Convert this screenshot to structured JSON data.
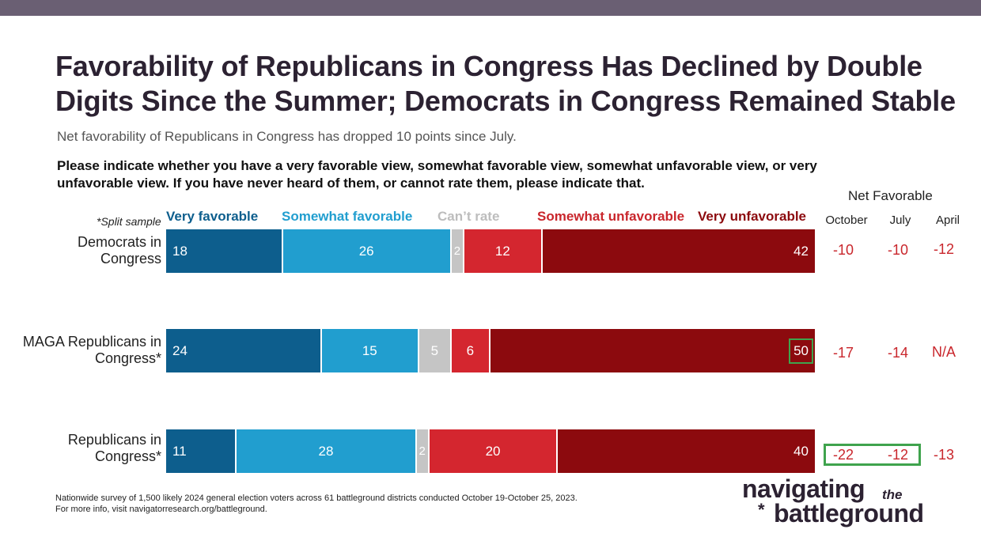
{
  "header": {
    "title": "Favorability of Republicans in Congress Has Declined by Double Digits Since the Summer; Democrats in Congress Remained Stable",
    "subtitle": "Net favorability of Republicans in Congress has dropped 10 points since July.",
    "question": "Please indicate whether you have a very favorable view, somewhat favorable view, somewhat unfavorable view, or very unfavorable view. If you have never heard of them, or cannot rate them, please indicate that."
  },
  "split_note": "*Split sample",
  "net_favorable": {
    "title": "Net Favorable",
    "columns": [
      "October",
      "July",
      "April"
    ]
  },
  "colors": {
    "very_favorable": "#0d5e8d",
    "somewhat_favorable": "#219ecf",
    "cant_rate": "#c5c5c5",
    "somewhat_unfavorable": "#d4262f",
    "very_unfavorable": "#8c0a0e",
    "net_text": "#c9262c",
    "highlight": "#3fa34d"
  },
  "chart_data": {
    "type": "bar",
    "orientation": "horizontal-stacked",
    "legend": [
      "Very favorable",
      "Somewhat favorable",
      "Can’t rate",
      "Somewhat unfavorable",
      "Very unfavorable"
    ],
    "categories": [
      "Democrats in Congress",
      "MAGA Republicans in Congress*",
      "Republicans in Congress*"
    ],
    "series": [
      {
        "name": "Very favorable",
        "values": [
          18,
          24,
          11
        ]
      },
      {
        "name": "Somewhat favorable",
        "values": [
          26,
          15,
          28
        ]
      },
      {
        "name": "Can’t rate",
        "values": [
          2,
          5,
          2
        ]
      },
      {
        "name": "Somewhat unfavorable",
        "values": [
          12,
          6,
          20
        ]
      },
      {
        "name": "Very unfavorable",
        "values": [
          42,
          50,
          40
        ]
      }
    ],
    "net_favorable": [
      {
        "October": "-10",
        "July": "-10",
        "April": "-12"
      },
      {
        "October": "-17",
        "July": "-14",
        "April": "N/A"
      },
      {
        "October": "-22",
        "July": "-12",
        "April": "-13"
      }
    ]
  },
  "rows": [
    {
      "label_line1": "Democrats in",
      "label_line2": "Congress"
    },
    {
      "label_line1": "MAGA Republicans in",
      "label_line2": "Congress*"
    },
    {
      "label_line1": "Republicans in",
      "label_line2": "Congress*"
    }
  ],
  "footnote": {
    "line1": "Nationwide survey of 1,500 likely 2024 general election voters across 61 battleground districts conducted October 19-October 25, 2023.",
    "line2": "For more info, visit navigatorresearch.org/battleground."
  },
  "logo": {
    "line1": "navigating",
    "the": "the",
    "star": "*",
    "line2": "battleground"
  }
}
